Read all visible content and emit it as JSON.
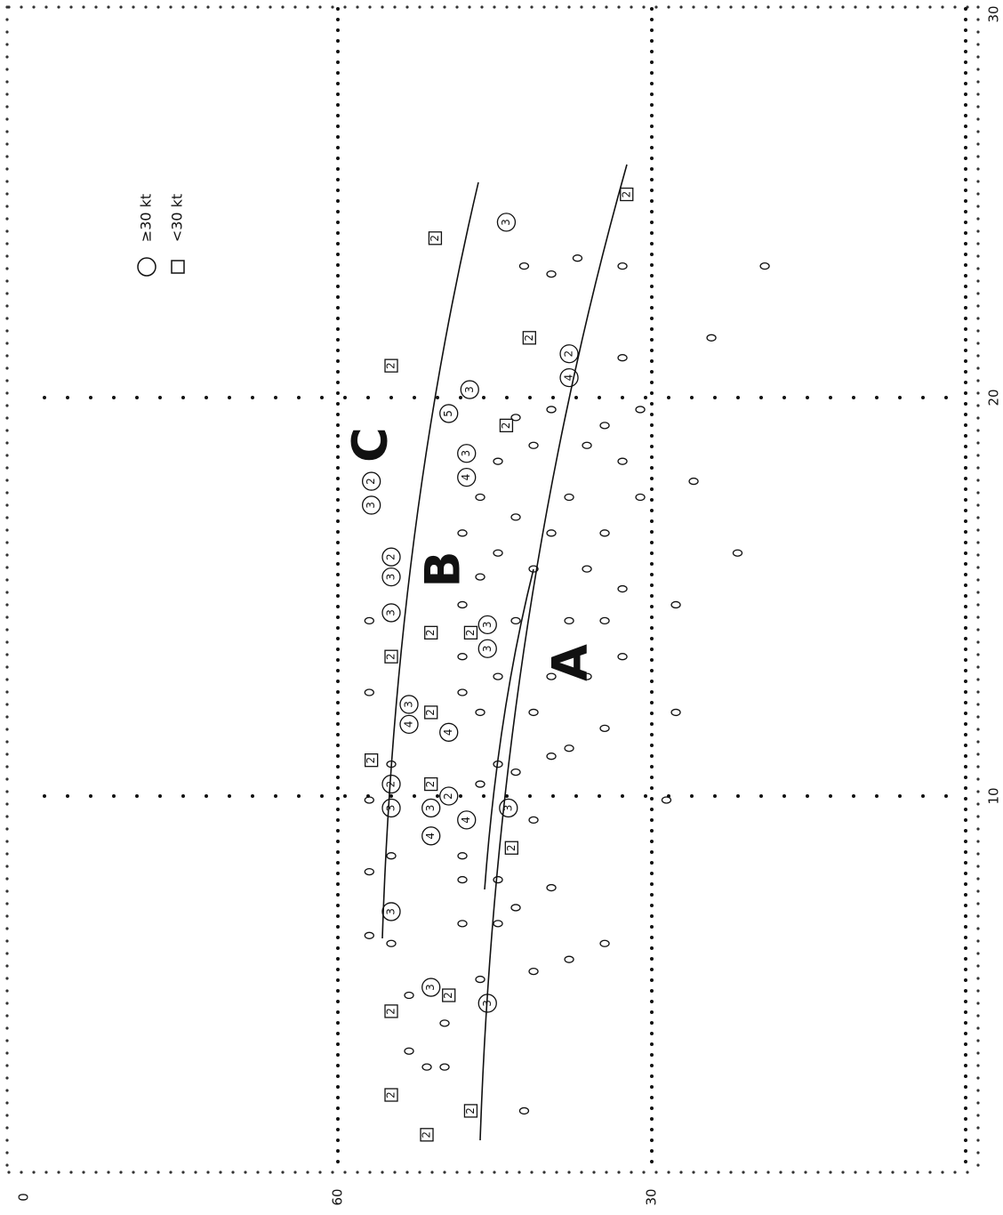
{
  "chart_data": {
    "type": "scatter",
    "annotations": [
      "A",
      "B",
      "C"
    ],
    "xlim": [
      0,
      90
    ],
    "xreverse": true,
    "xticks": [
      {
        "value": 90,
        "label": "0"
      },
      60,
      30
    ],
    "ylim": [
      0,
      30
    ],
    "yticks": [
      30,
      20,
      10
    ],
    "grid": true,
    "color": "#111111",
    "series": [
      {
        "name": "≥30 kt",
        "marker": "circle",
        "x": [
          54.9,
          51.1,
          54.9,
          54.9,
          54.9,
          56.8,
          56.8,
          54.9,
          54.9,
          53.2,
          53.2,
          51.1,
          51.1,
          49.4,
          49.4,
          47.7,
          47.7,
          45.7,
          45.7,
          45.7,
          43.7,
          47.7,
          37.9,
          37.9,
          49.4,
          47.4,
          43.9
        ],
        "values": [
          7.1,
          5.2,
          14.6,
          15.5,
          16.0,
          17.3,
          17.9,
          9.7,
          10.3,
          12.3,
          11.8,
          9.7,
          9.0,
          10.0,
          11.6,
          18.0,
          18.6,
          13.7,
          14.3,
          4.8,
          9.7,
          9.4,
          20.5,
          21.1,
          19.6,
          20.2,
          24.4
        ],
        "counts": [
          3,
          3,
          3,
          3,
          2,
          3,
          2,
          3,
          2,
          3,
          4,
          3,
          4,
          2,
          4,
          4,
          3,
          3,
          3,
          3,
          3,
          4,
          4,
          2,
          5,
          3,
          3
        ]
      },
      {
        "name": "<30 kt",
        "marker": "square",
        "x": [
          54.9,
          56.8,
          54.9,
          54.9,
          50.7,
          51.1,
          51.1,
          51.1,
          43.4,
          43.9,
          41.7,
          47.3,
          32.4,
          49.4,
          54.9,
          51.5,
          47.3
        ],
        "values": [
          20.8,
          10.9,
          13.5,
          4.6,
          24.0,
          14.1,
          12.1,
          10.3,
          8.7,
          19.3,
          21.5,
          14.1,
          25.1,
          5.0,
          2.5,
          1.5,
          2.1
        ],
        "counts": [
          2,
          2,
          2,
          2,
          2,
          2,
          2,
          2,
          2,
          2,
          2,
          2,
          2,
          2,
          2,
          2,
          2
        ]
      },
      {
        "marker": "zero",
        "x": [
          57.0,
          57.0,
          57.0,
          57.0,
          57.0,
          54.9,
          54.9,
          54.9,
          53.2,
          53.2,
          51.5,
          49.8,
          49.8,
          48.1,
          48.1,
          48.1,
          48.1,
          48.1,
          48.1,
          48.1,
          46.4,
          46.4,
          46.4,
          46.4,
          46.4,
          44.7,
          44.7,
          44.7,
          44.7,
          44.7,
          44.7,
          43.0,
          43.0,
          43.0,
          43.0,
          43.0,
          41.3,
          41.3,
          41.3,
          41.3,
          41.3,
          39.6,
          39.6,
          39.6,
          39.6,
          39.6,
          37.9,
          37.9,
          37.9,
          36.2,
          36.2,
          36.2,
          34.5,
          34.5,
          34.5,
          34.5,
          32.8,
          32.8,
          32.8,
          32.8,
          31.1,
          31.1,
          28.6,
          27.7,
          26.0,
          24.3,
          21.8,
          19.2,
          34.5,
          37.9,
          42.2,
          27.7,
          42.2,
          39.6,
          37.1,
          32.8
        ],
        "values": [
          6.5,
          8.1,
          9.9,
          12.6,
          14.4,
          6.3,
          8.5,
          10.8,
          5.0,
          3.6,
          3.2,
          3.2,
          4.3,
          6.8,
          7.9,
          8.5,
          12.6,
          13.5,
          14.8,
          16.6,
          5.4,
          10.3,
          12.1,
          15.5,
          17.5,
          6.8,
          7.9,
          10.8,
          13.0,
          16.1,
          18.4,
          7.2,
          10.6,
          14.4,
          17.0,
          19.5,
          5.6,
          9.4,
          12.1,
          15.7,
          18.8,
          7.7,
          11.0,
          13.0,
          16.6,
          19.7,
          11.2,
          14.4,
          17.5,
          13.0,
          15.7,
          18.8,
          11.7,
          14.4,
          16.6,
          19.3,
          13.5,
          15.2,
          18.4,
          21.0,
          17.5,
          19.7,
          9.9,
          14.8,
          17.9,
          21.5,
          16.1,
          23.3,
          6.3,
          5.9,
          2.1,
          12.1,
          23.3,
          23.1,
          23.5,
          23.3
        ]
      }
    ]
  }
}
